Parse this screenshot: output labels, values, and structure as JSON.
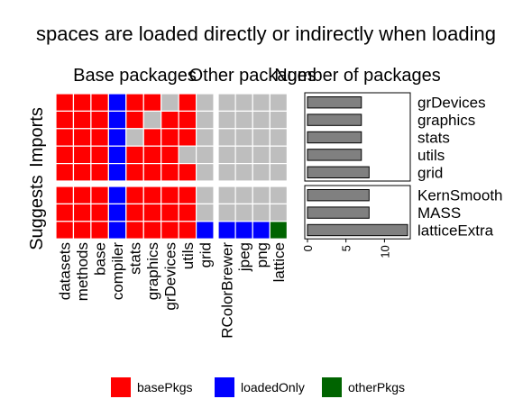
{
  "chart_data": {
    "type": "tile",
    "title": "spaces are loaded directly or indirectly when loading",
    "col_groups": [
      {
        "name": "Base packages",
        "columns": [
          "datasets",
          "methods",
          "base",
          "compiler",
          "stats",
          "graphics",
          "grDevices",
          "utils",
          "grid"
        ]
      },
      {
        "name": "Other packages",
        "columns": [
          "RColorBrewer",
          "jpeg",
          "png",
          "lattice"
        ]
      }
    ],
    "row_groups": [
      {
        "name": "Imports",
        "rows": [
          "grDevices",
          "graphics",
          "stats",
          "utils",
          "grid"
        ],
        "cells": [
          [
            [
              "basePkgs",
              "basePkgs",
              "basePkgs",
              "loadedOnly",
              "basePkgs",
              "basePkgs",
              null,
              "basePkgs",
              null
            ],
            [
              null,
              null,
              null,
              null
            ]
          ],
          [
            [
              "basePkgs",
              "basePkgs",
              "basePkgs",
              "loadedOnly",
              "basePkgs",
              null,
              "basePkgs",
              "basePkgs",
              null
            ],
            [
              null,
              null,
              null,
              null
            ]
          ],
          [
            [
              "basePkgs",
              "basePkgs",
              "basePkgs",
              "loadedOnly",
              null,
              "basePkgs",
              "basePkgs",
              "basePkgs",
              null
            ],
            [
              null,
              null,
              null,
              null
            ]
          ],
          [
            [
              "basePkgs",
              "basePkgs",
              "basePkgs",
              "loadedOnly",
              "basePkgs",
              "basePkgs",
              "basePkgs",
              null,
              null
            ],
            [
              null,
              null,
              null,
              null
            ]
          ],
          [
            [
              "basePkgs",
              "basePkgs",
              "basePkgs",
              "loadedOnly",
              "basePkgs",
              "basePkgs",
              "basePkgs",
              "basePkgs",
              null
            ],
            [
              null,
              null,
              null,
              null
            ]
          ]
        ],
        "counts": [
          7,
          7,
          7,
          7,
          8
        ]
      },
      {
        "name": "Suggests",
        "rows": [
          "KernSmooth",
          "MASS",
          "latticeExtra"
        ],
        "cells": [
          [
            [
              "basePkgs",
              "basePkgs",
              "basePkgs",
              "loadedOnly",
              "basePkgs",
              "basePkgs",
              "basePkgs",
              "basePkgs",
              null
            ],
            [
              null,
              null,
              null,
              null
            ]
          ],
          [
            [
              "basePkgs",
              "basePkgs",
              "basePkgs",
              "loadedOnly",
              "basePkgs",
              "basePkgs",
              "basePkgs",
              "basePkgs",
              null
            ],
            [
              null,
              null,
              null,
              null
            ]
          ],
          [
            [
              "basePkgs",
              "basePkgs",
              "basePkgs",
              "loadedOnly",
              "basePkgs",
              "basePkgs",
              "basePkgs",
              "basePkgs",
              "loadedOnly"
            ],
            [
              "loadedOnly",
              "loadedOnly",
              "loadedOnly",
              "otherPkgs"
            ]
          ]
        ],
        "counts": [
          8,
          8,
          13
        ]
      }
    ],
    "count_axis": {
      "title": "Number of packages",
      "xlim": [
        -0.35,
        13.35
      ],
      "xticks": [
        0,
        5,
        10
      ],
      "bar_color": "#808080"
    },
    "legend": [
      {
        "name": "basePkgs",
        "color": "#ff0000"
      },
      {
        "name": "loadedOnly",
        "color": "#0000ff"
      },
      {
        "name": "otherPkgs",
        "color": "#006400"
      }
    ],
    "na_color": "#bebebe"
  }
}
